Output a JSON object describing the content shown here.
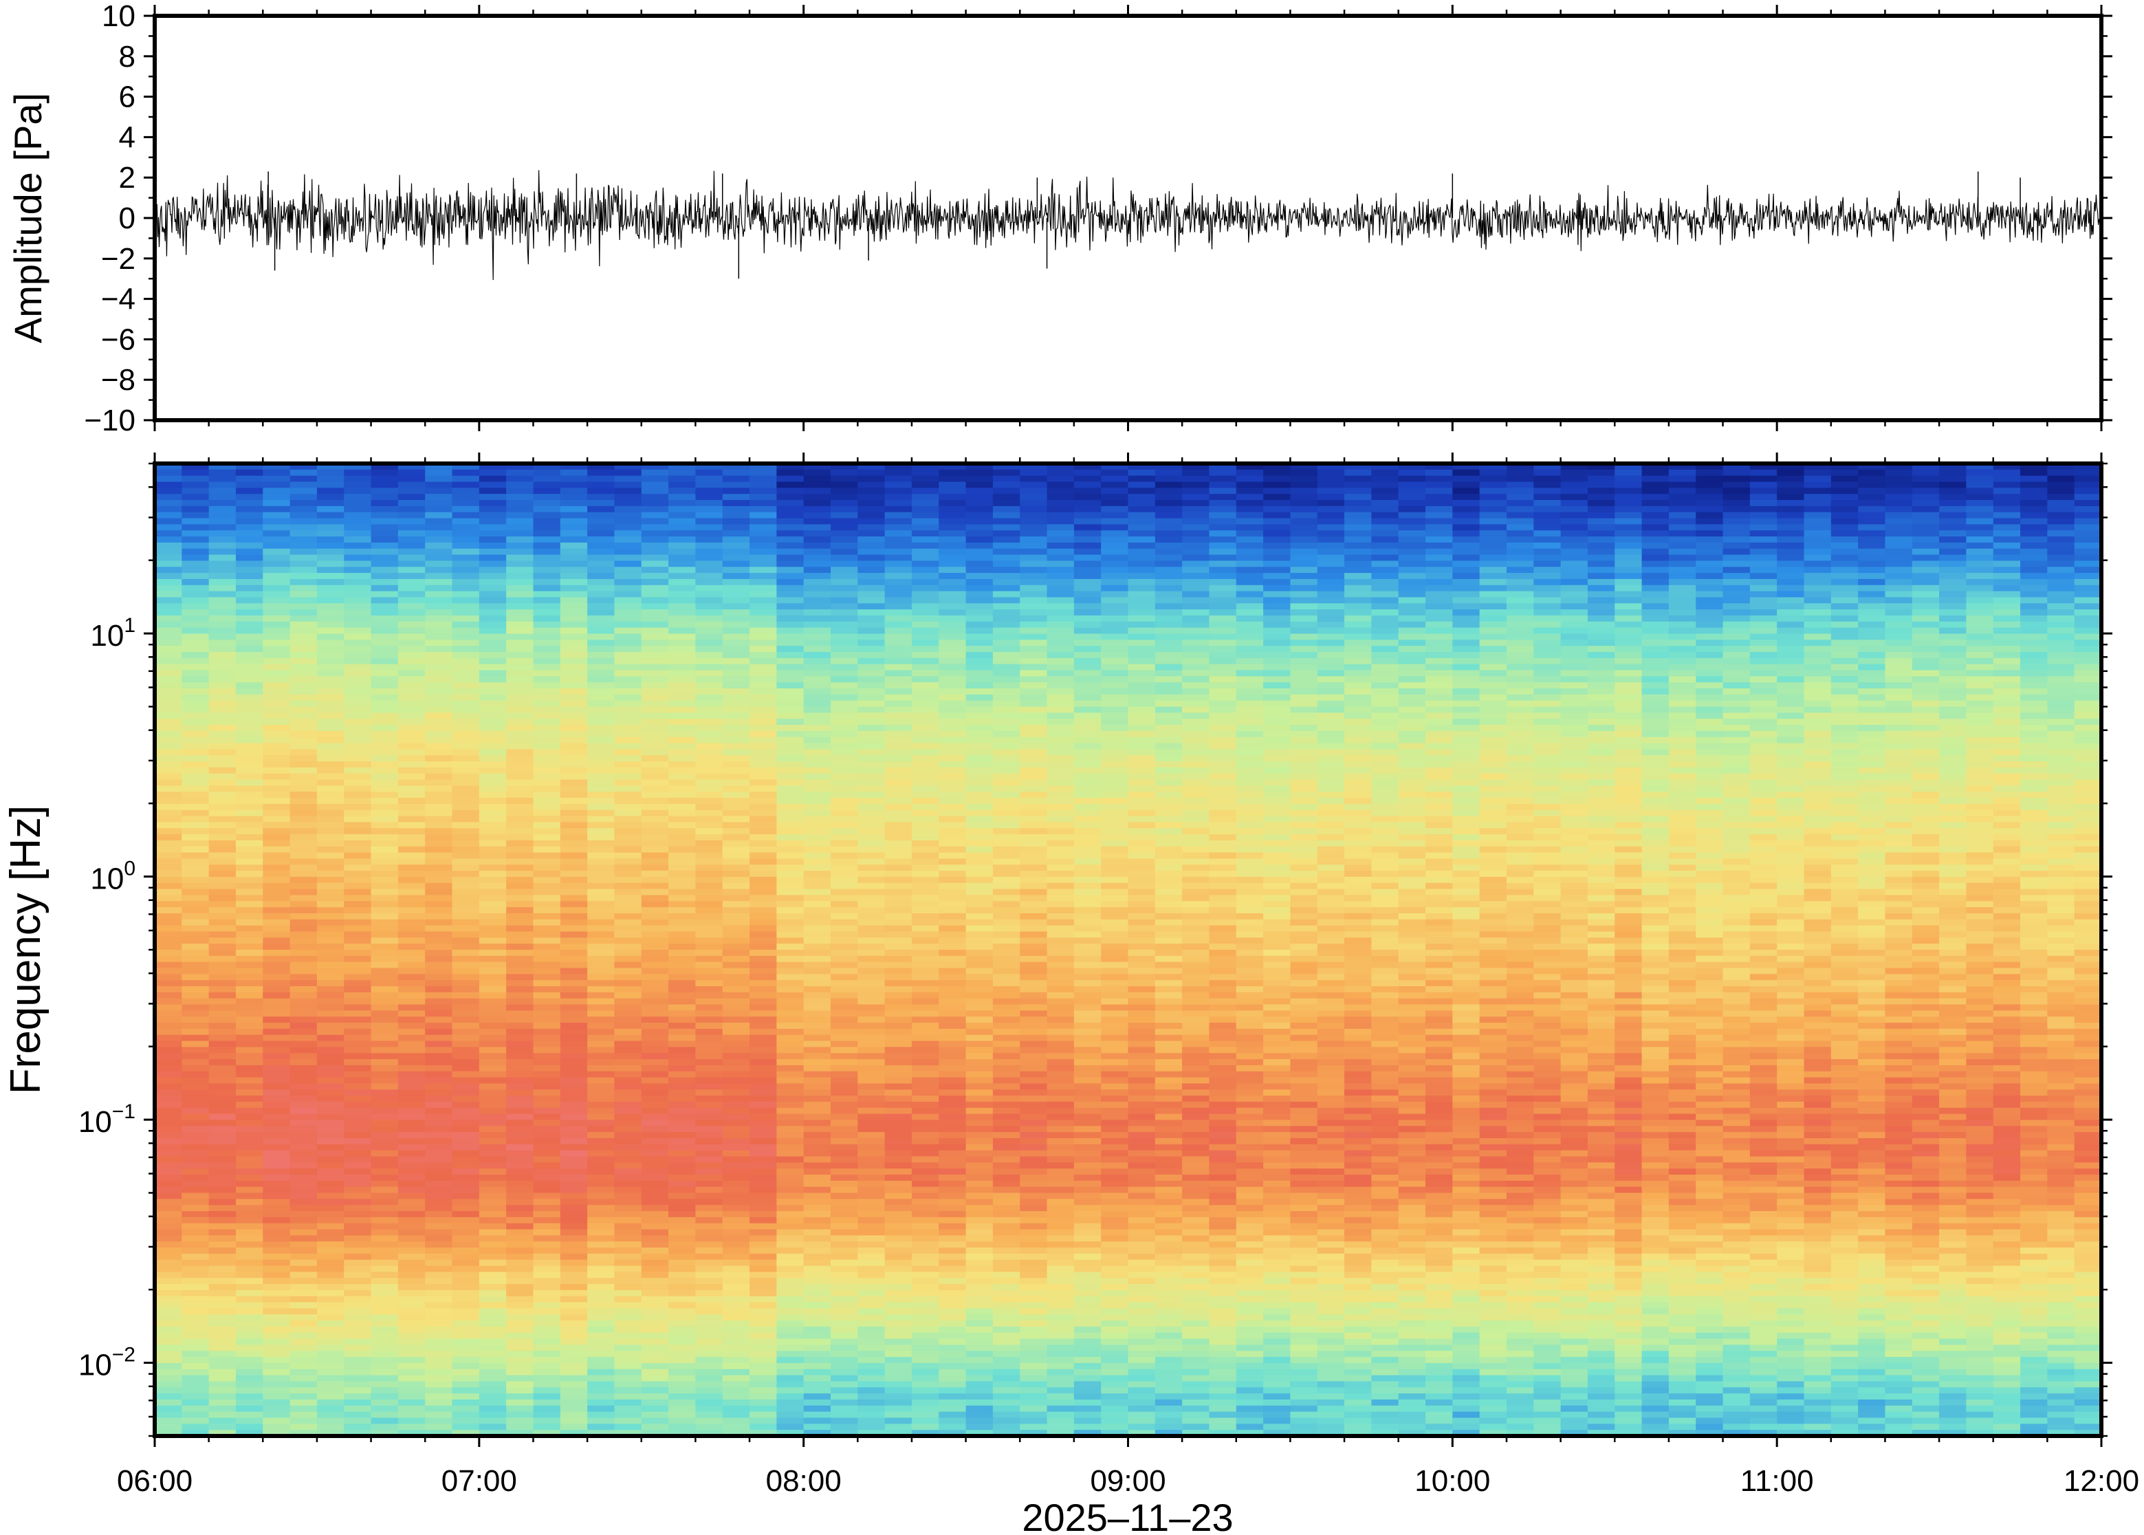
{
  "chart_data": [
    {
      "type": "line",
      "panel": "waveform",
      "ylabel": "Amplitude [Pa]",
      "ylim": [
        -10,
        10
      ],
      "yticks": [
        10,
        8,
        6,
        4,
        2,
        0,
        -2,
        -4,
        -6,
        -8,
        -10
      ],
      "ytick_labels": [
        "10",
        "8",
        "6",
        "4",
        "2",
        "0",
        "−2",
        "−4",
        "−6",
        "−8",
        "−10"
      ],
      "x_start": "06:00",
      "x_end": "12:00",
      "grid": false,
      "series": [
        {
          "color": "#000000",
          "envelope_x_hours": [
            6.0,
            6.5,
            7.0,
            7.5,
            8.0,
            8.5,
            9.0,
            9.5,
            10.0,
            10.5,
            11.0,
            11.5,
            12.0
          ],
          "envelope_peak_pa": [
            1.6,
            1.5,
            1.4,
            1.35,
            1.2,
            1.25,
            1.15,
            0.8,
            1.0,
            1.05,
            0.9,
            0.85,
            1.0
          ],
          "notable_peaks": [
            {
              "t": 6.35,
              "v": 2.3
            },
            {
              "t": 6.37,
              "v": -2.6
            },
            {
              "t": 7.3,
              "v": 2.2
            },
            {
              "t": 7.75,
              "v": 2.2
            },
            {
              "t": 7.8,
              "v": -3.0
            },
            {
              "t": 8.2,
              "v": -2.1
            },
            {
              "t": 8.72,
              "v": 2.0
            },
            {
              "t": 8.75,
              "v": -2.5
            },
            {
              "t": 10.0,
              "v": 2.2
            },
            {
              "t": 11.62,
              "v": 2.3
            },
            {
              "t": 11.75,
              "v": 2.0
            }
          ]
        }
      ]
    },
    {
      "type": "heatmap",
      "panel": "spectrogram",
      "ylabel": "Frequency [Hz]",
      "xlabel": "2025–11–23",
      "y_scale": "log",
      "ylim": [
        0.005,
        50
      ],
      "yticks": [
        {
          "base": "10",
          "exp": "1"
        },
        {
          "base": "10",
          "exp": "0"
        },
        {
          "base": "10",
          "exp": "−1"
        },
        {
          "base": "10",
          "exp": "−2"
        }
      ],
      "xticks": [
        "06:00",
        "07:00",
        "08:00",
        "09:00",
        "10:00",
        "11:00",
        "12:00"
      ],
      "x_range_hours": [
        6,
        12
      ],
      "colormap": "jet",
      "colormap_stops": [
        "#08106b",
        "#1b3fbf",
        "#2d8fe6",
        "#6fe0d2",
        "#c9f09a",
        "#f6e27c",
        "#f8ad55",
        "#ec6a4c",
        "#f07a7a"
      ],
      "power_profile": {
        "freq_hz": [
          0.007,
          0.012,
          0.02,
          0.035,
          0.06,
          0.1,
          0.2,
          0.5,
          1,
          3,
          10,
          20,
          40
        ],
        "level_0_to_1": [
          0.38,
          0.5,
          0.62,
          0.76,
          0.86,
          0.87,
          0.8,
          0.72,
          0.67,
          0.58,
          0.42,
          0.26,
          0.12
        ]
      },
      "time_trend_hours": [
        6,
        7,
        7.85,
        8,
        9,
        10,
        11,
        12
      ],
      "time_trend_offset": [
        0.04,
        0.03,
        0.03,
        -0.02,
        -0.03,
        -0.02,
        -0.04,
        -0.03
      ],
      "grid": false
    }
  ]
}
